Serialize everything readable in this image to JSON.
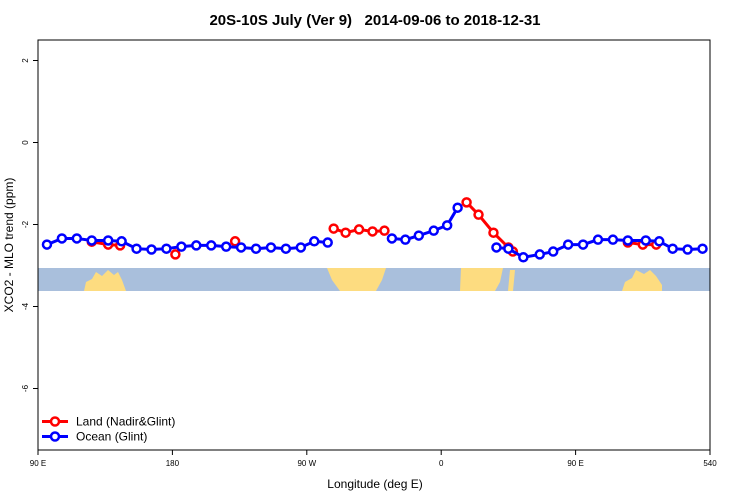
{
  "chart_data": {
    "type": "line",
    "title": "20S-10S July (Ver 9)   2014-09-06 to 2018-12-31",
    "xlabel": "Longitude (deg E)",
    "ylabel": "XCO2 - MLO trend (ppm)",
    "xlim": [
      90,
      540
    ],
    "ylim": [
      -7.5,
      2.5
    ],
    "xticks": [
      {
        "value": 90,
        "label": "90 E"
      },
      180,
      {
        "value": 270,
        "label": "90 W"
      },
      {
        "value": 360,
        "label": "0"
      },
      {
        "value": 450,
        "label": "90 E"
      },
      540
    ],
    "yticks": [
      2,
      0,
      -2,
      -4,
      -6
    ],
    "legend": "bottomleft",
    "series": [
      {
        "name": "Land (Nadir&Glint)",
        "color": "#ff0000",
        "x": [
          126,
          137,
          145,
          null,
          182,
          null,
          222,
          null,
          288,
          296,
          305,
          314,
          322,
          null,
          377,
          385,
          395,
          405,
          408,
          null,
          485,
          495,
          504
        ],
        "values": [
          -2.42,
          -2.49,
          -2.51,
          null,
          -2.73,
          null,
          -2.41,
          null,
          -2.1,
          -2.2,
          -2.12,
          -2.17,
          -2.15,
          null,
          -1.46,
          -1.76,
          -2.2,
          -2.56,
          -2.66,
          null,
          -2.44,
          -2.49,
          -2.49
        ]
      },
      {
        "name": "Ocean (Glint)",
        "color": "#0000ff",
        "x": [
          96,
          106,
          116,
          126,
          137,
          146,
          156,
          166,
          176,
          186,
          196,
          206,
          216,
          226,
          236,
          246,
          256,
          266,
          275,
          284,
          null,
          327,
          336,
          345,
          355,
          364,
          371,
          null,
          397,
          405,
          415,
          426,
          435,
          445,
          455,
          465,
          475,
          485,
          497,
          506,
          515,
          525,
          535
        ],
        "values": [
          -2.49,
          -2.34,
          -2.34,
          -2.39,
          -2.39,
          -2.41,
          -2.59,
          -2.61,
          -2.59,
          -2.54,
          -2.51,
          -2.51,
          -2.54,
          -2.56,
          -2.59,
          -2.56,
          -2.59,
          -2.56,
          -2.41,
          -2.44,
          null,
          -2.34,
          -2.37,
          -2.27,
          -2.15,
          -2.02,
          -1.59,
          null,
          -2.56,
          -2.59,
          -2.8,
          -2.73,
          -2.66,
          -2.49,
          -2.49,
          -2.37,
          -2.37,
          -2.39,
          -2.39,
          -2.41,
          -2.59,
          -2.61,
          -2.59
        ]
      }
    ]
  }
}
